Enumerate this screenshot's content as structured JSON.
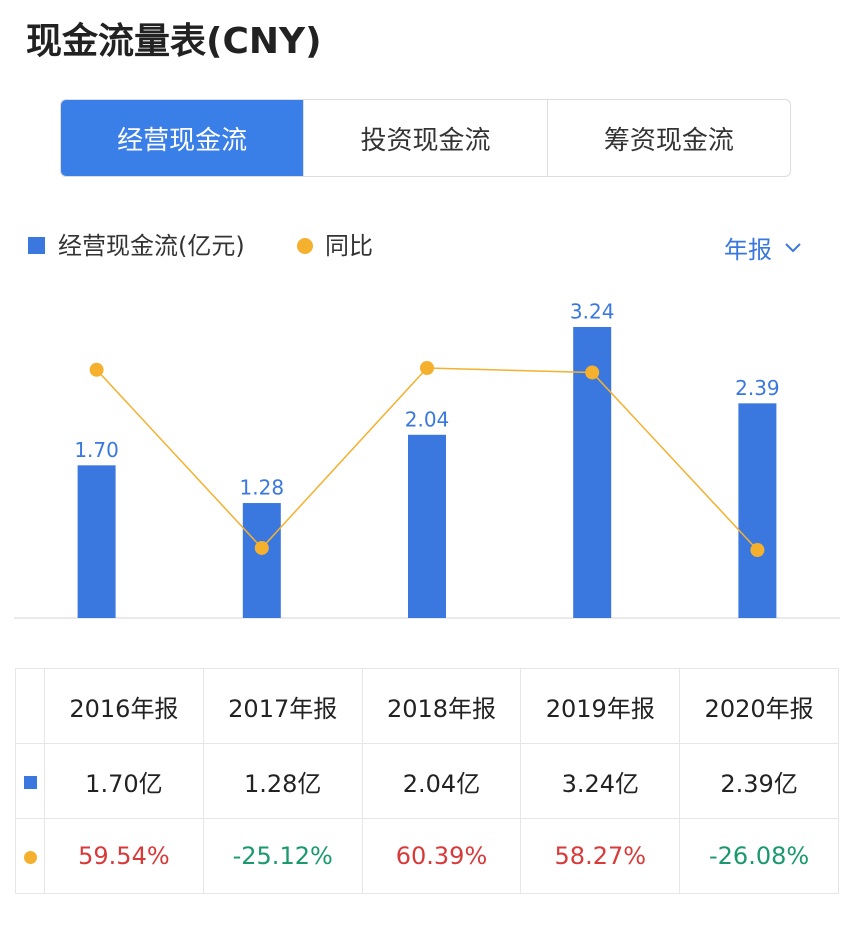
{
  "header": {
    "title": "现金流量表(CNY)"
  },
  "tabs": [
    {
      "label": "经营现金流",
      "active": true
    },
    {
      "label": "投资现金流",
      "active": false
    },
    {
      "label": "筹资现金流",
      "active": false
    }
  ],
  "period_selector": "年报",
  "chart_data": {
    "type": "bar",
    "categories": [
      "2016年报",
      "2017年报",
      "2018年报",
      "2019年报",
      "2020年报"
    ],
    "series": [
      {
        "name": "经营现金流(亿元)",
        "type": "bar",
        "color": "#3a78e0",
        "values": [
          1.7,
          1.28,
          2.04,
          3.24,
          2.39
        ],
        "value_labels": [
          "1.70",
          "1.28",
          "2.04",
          "3.24",
          "2.39"
        ]
      },
      {
        "name": "同比",
        "type": "line",
        "axis": "y2",
        "color": "#f5b02e",
        "values": [
          59.54,
          -25.12,
          60.39,
          58.27,
          -26.08
        ]
      }
    ]
  },
  "table": {
    "rows": [
      [
        "1.70亿",
        "1.28亿",
        "2.04亿",
        "3.24亿",
        "2.39亿"
      ],
      [
        "59.54%",
        "-25.12%",
        "60.39%",
        "58.27%",
        "-26.08%"
      ]
    ]
  }
}
